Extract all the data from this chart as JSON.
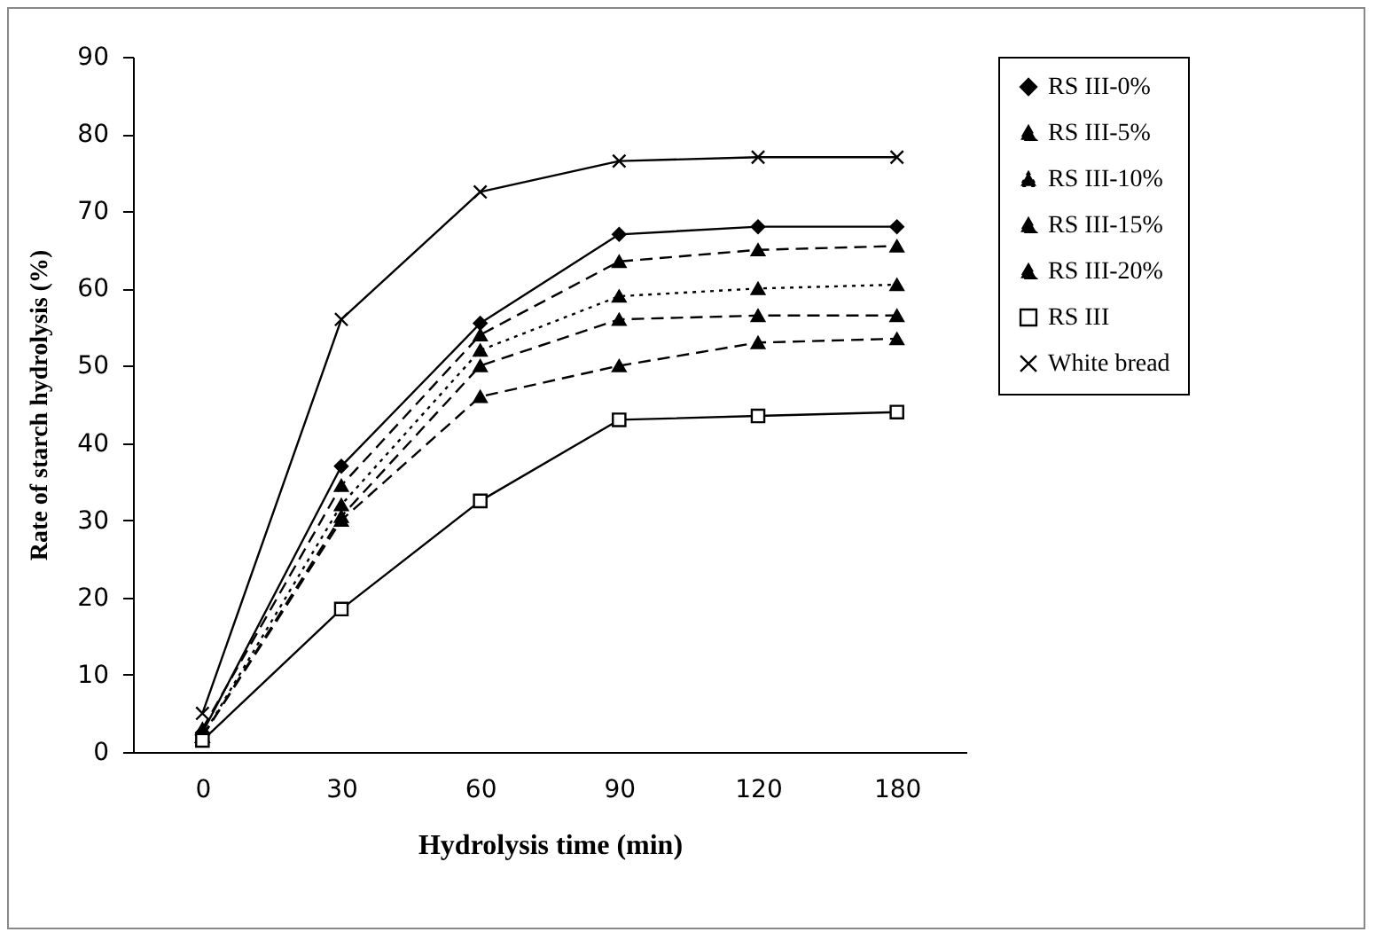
{
  "chart_data": {
    "type": "line",
    "xlabel": "Hydrolysis time (min)",
    "ylabel": "Rate of starch hydrolysis (%)",
    "categories": [
      "0",
      "30",
      "60",
      "90",
      "120",
      "180"
    ],
    "ylim": [
      0,
      90
    ],
    "yticks": [
      0,
      10,
      20,
      30,
      40,
      50,
      60,
      70,
      80,
      90
    ],
    "legend": "right",
    "series": [
      {
        "name": "RS III-0%",
        "color": "#000000",
        "marker": "diamond",
        "line_style": "solid",
        "values": [
          2.5,
          37,
          55.5,
          67,
          68,
          68
        ]
      },
      {
        "name": "RS III-5%",
        "color": "#000000",
        "marker": "triangle",
        "line_style": "dashed",
        "values": [
          3,
          34.5,
          54,
          63.5,
          65,
          65.5
        ]
      },
      {
        "name": "RS III-10%",
        "color": "#000000",
        "marker": "triangle",
        "line_style": "dotted",
        "values": [
          2,
          32,
          52,
          59,
          60,
          60.5
        ]
      },
      {
        "name": "RS III-15%",
        "color": "#000000",
        "marker": "triangle",
        "line_style": "dashed",
        "values": [
          2,
          30.5,
          50,
          56,
          56.5,
          56.5
        ]
      },
      {
        "name": "RS III-20%",
        "color": "#000000",
        "marker": "triangle",
        "line_style": "dashed",
        "values": [
          2,
          30,
          46,
          50,
          53,
          53.5
        ]
      },
      {
        "name": "RS III",
        "color": "#000000",
        "marker": "square",
        "line_style": "solid",
        "values": [
          1.5,
          18.5,
          32.5,
          43,
          43.5,
          44
        ]
      },
      {
        "name": "White bread",
        "color": "#000000",
        "marker": "cross",
        "line_style": "solid",
        "values": [
          5,
          56,
          72.5,
          76.5,
          77,
          77
        ]
      }
    ]
  }
}
